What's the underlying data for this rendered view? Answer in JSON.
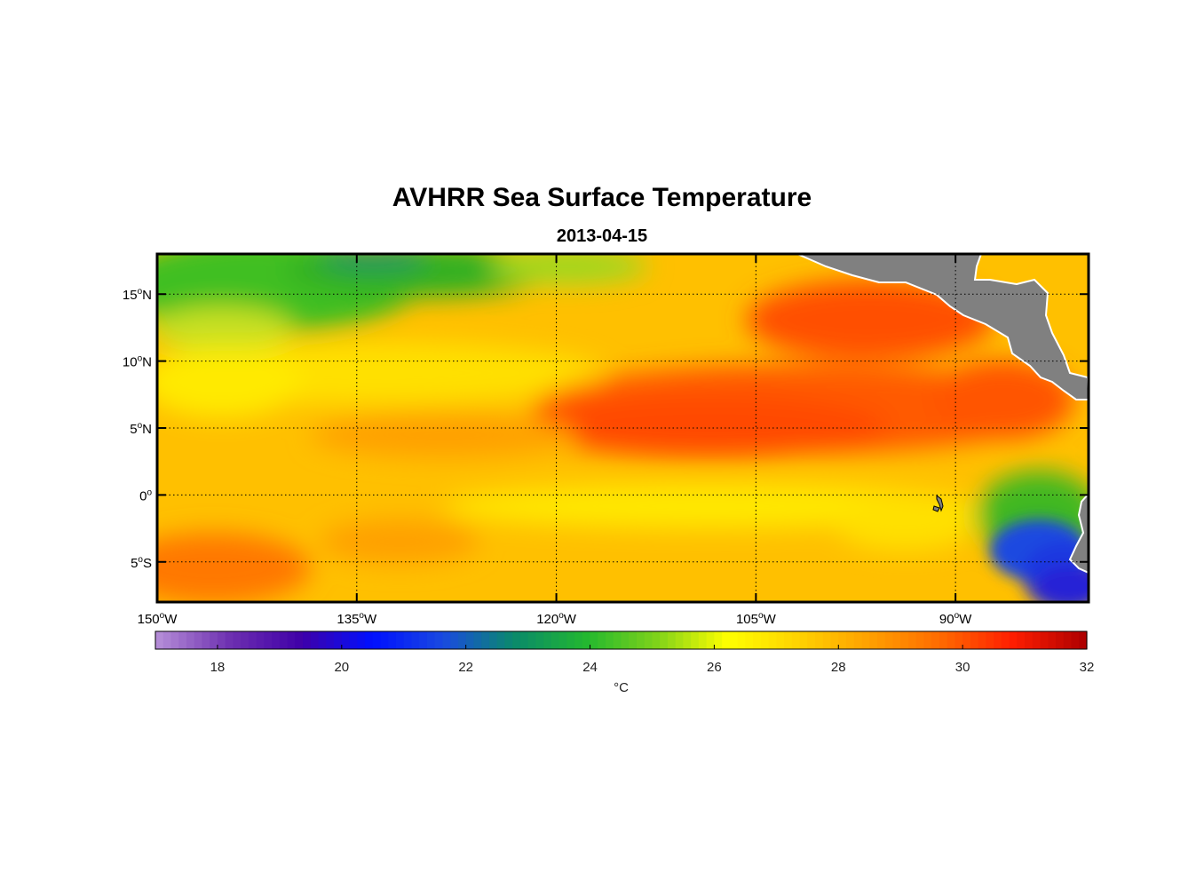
{
  "title": "AVHRR Sea Surface Temperature",
  "subtitle": "2013-04-15",
  "chart_data": {
    "type": "heatmap",
    "title": "AVHRR Sea Surface Temperature",
    "subtitle": "2013-04-15",
    "xlim": [
      -150,
      -80
    ],
    "ylim": [
      -8,
      18
    ],
    "x_ticks": [
      -150,
      -135,
      -120,
      -105,
      -90
    ],
    "x_tick_labels": [
      "150",
      "135",
      "120",
      "105",
      "90"
    ],
    "x_tick_suffix": "W",
    "y_ticks": [
      15,
      10,
      5,
      0,
      -5
    ],
    "y_tick_labels": [
      "15",
      "10",
      "5",
      "0",
      "5"
    ],
    "y_tick_suffix": [
      "N",
      "N",
      "N",
      "",
      "S"
    ],
    "degree_symbol": "o",
    "grid": true,
    "colorbar": {
      "range": [
        17,
        32
      ],
      "ticks": [
        18,
        20,
        22,
        24,
        26,
        28,
        30,
        32
      ],
      "tick_labels": [
        "18",
        "20",
        "22",
        "24",
        "26",
        "28",
        "30",
        "32"
      ],
      "label": "°C",
      "colors": [
        "#b38bd6",
        "#6d2fb0",
        "#3f00a8",
        "#0010ff",
        "#1a4ae0",
        "#0a8a6a",
        "#22b830",
        "#7fd21a",
        "#ffff00",
        "#ffd200",
        "#ffa000",
        "#ff6a00",
        "#ff1e00",
        "#b00000"
      ]
    },
    "land_color": "#808080"
  }
}
